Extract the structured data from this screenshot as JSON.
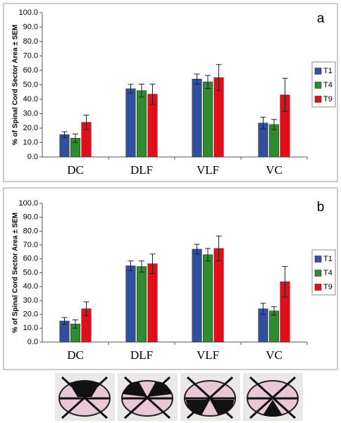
{
  "chart_data": [
    {
      "type": "bar",
      "panel_label": "a",
      "y_label": "% of Spinal Cord Sector Area ± SEM",
      "categories": [
        "DC",
        "DLF",
        "VLF",
        "VC"
      ],
      "series": [
        {
          "name": "T1",
          "color": "#2f4f9f",
          "values": [
            15.5,
            47.3,
            54,
            23.5
          ],
          "errors": [
            2,
            3,
            3.5,
            4
          ]
        },
        {
          "name": "T4",
          "color": "#2e8b2e",
          "values": [
            13,
            46,
            52,
            22.5
          ],
          "errors": [
            3,
            4.5,
            4.5,
            3.5
          ]
        },
        {
          "name": "T9",
          "color": "#e0101a",
          "values": [
            24,
            43.5,
            55,
            43
          ],
          "errors": [
            5,
            7,
            9,
            11.5
          ]
        }
      ],
      "ylim": [
        0,
        100
      ],
      "yticks": [
        {
          "value": 0,
          "label": "0.0"
        },
        {
          "value": 10,
          "label": "10.0"
        },
        {
          "value": 20,
          "label": "20.0"
        },
        {
          "value": 30,
          "label": "30.0"
        },
        {
          "value": 40,
          "label": "40.0"
        },
        {
          "value": 50,
          "label": "50.0"
        },
        {
          "value": 60,
          "label": "60.0"
        },
        {
          "value": 70,
          "label": "70.0"
        },
        {
          "value": 80,
          "label": "80.0"
        },
        {
          "value": 90,
          "label": "90.0"
        },
        {
          "value": 100,
          "label": "100.0"
        }
      ]
    },
    {
      "type": "bar",
      "panel_label": "b",
      "y_label": "% of Spinal Cord Sector Area ± SEM",
      "categories": [
        "DC",
        "DLF",
        "VLF",
        "VC"
      ],
      "series": [
        {
          "name": "T1",
          "color": "#2f4f9f",
          "values": [
            15.2,
            55,
            67,
            24
          ],
          "errors": [
            2.5,
            3.5,
            3.5,
            4
          ]
        },
        {
          "name": "T4",
          "color": "#2e8b2e",
          "values": [
            13,
            54.5,
            63,
            22.5
          ],
          "errors": [
            3,
            4,
            4.5,
            3
          ]
        },
        {
          "name": "T9",
          "color": "#e0101a",
          "values": [
            24,
            56.5,
            67.5,
            43.5
          ],
          "errors": [
            5,
            7,
            9,
            11
          ]
        }
      ],
      "ylim": [
        0,
        100
      ],
      "yticks": [
        {
          "value": 0,
          "label": "0.0"
        },
        {
          "value": 10,
          "label": "10.0"
        },
        {
          "value": 20,
          "label": "20.0"
        },
        {
          "value": 30,
          "label": "30.0"
        },
        {
          "value": 40,
          "label": "40.0"
        },
        {
          "value": 50,
          "label": "50.0"
        },
        {
          "value": 60,
          "label": "60.0"
        },
        {
          "value": 70,
          "label": "70.0"
        },
        {
          "value": 80,
          "label": "80.0"
        },
        {
          "value": 90,
          "label": "90.0"
        },
        {
          "value": 100,
          "label": "100.0"
        }
      ]
    }
  ]
}
